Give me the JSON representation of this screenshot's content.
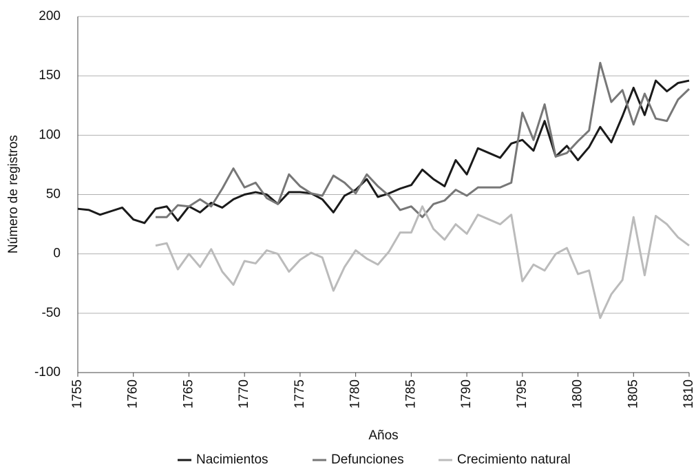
{
  "chart_data": {
    "type": "line",
    "x": [
      1755,
      1756,
      1757,
      1758,
      1759,
      1760,
      1761,
      1762,
      1763,
      1764,
      1765,
      1766,
      1767,
      1768,
      1769,
      1770,
      1771,
      1772,
      1773,
      1774,
      1775,
      1776,
      1777,
      1778,
      1779,
      1780,
      1781,
      1782,
      1783,
      1784,
      1785,
      1786,
      1787,
      1788,
      1789,
      1790,
      1791,
      1792,
      1793,
      1794,
      1795,
      1796,
      1797,
      1798,
      1799,
      1800,
      1801,
      1802,
      1803,
      1804,
      1805,
      1806,
      1807,
      1808,
      1809,
      1810
    ],
    "series": [
      {
        "name": "Nacimientos",
        "color": "#1a1a1a",
        "values": [
          38,
          37,
          33,
          36,
          39,
          29,
          26,
          38,
          40,
          28,
          40,
          35,
          43,
          39,
          46,
          50,
          52,
          50,
          42,
          52,
          52,
          51,
          46,
          35,
          49,
          54,
          63,
          48,
          51,
          55,
          58,
          71,
          63,
          57,
          79,
          67,
          89,
          85,
          81,
          93,
          96,
          87,
          112,
          82,
          91,
          79,
          90,
          107,
          94,
          116,
          140,
          117,
          146,
          137,
          144,
          146
        ]
      },
      {
        "name": "Defunciones",
        "color": "#777777",
        "values": [
          null,
          null,
          null,
          null,
          null,
          null,
          null,
          31,
          31,
          41,
          40,
          46,
          40,
          55,
          72,
          56,
          60,
          47,
          42,
          67,
          57,
          51,
          49,
          66,
          60,
          51,
          67,
          57,
          49,
          37,
          40,
          31,
          42,
          45,
          54,
          49,
          56,
          56,
          56,
          60,
          119,
          96,
          126,
          82,
          85,
          95,
          104,
          161,
          128,
          138,
          109,
          135,
          114,
          112,
          130,
          139
        ]
      },
      {
        "name": "Crecimiento natural",
        "color": "#bbbbbb",
        "values": [
          null,
          null,
          null,
          null,
          null,
          null,
          null,
          7,
          9,
          -13,
          0,
          -11,
          4,
          -15,
          -26,
          -6,
          -8,
          3,
          0,
          -15,
          -5,
          1,
          -3,
          -31,
          -11,
          3,
          -4,
          -9,
          2,
          18,
          18,
          40,
          21,
          12,
          25,
          17,
          33,
          29,
          25,
          33,
          -23,
          -9,
          -14,
          0,
          5,
          -17,
          -14,
          -54,
          -34,
          -22,
          31,
          -18,
          32,
          25,
          14,
          7
        ]
      }
    ],
    "xlim": [
      1755,
      1810
    ],
    "xticks": [
      1755,
      1760,
      1765,
      1770,
      1775,
      1780,
      1785,
      1790,
      1795,
      1800,
      1805,
      1810
    ],
    "ylim": [
      -100,
      200
    ],
    "yticks": [
      -100,
      -50,
      0,
      50,
      100,
      150,
      200
    ],
    "xlabel": "Años",
    "ylabel": "Número de registros",
    "grid": true,
    "legend": "bottom"
  }
}
